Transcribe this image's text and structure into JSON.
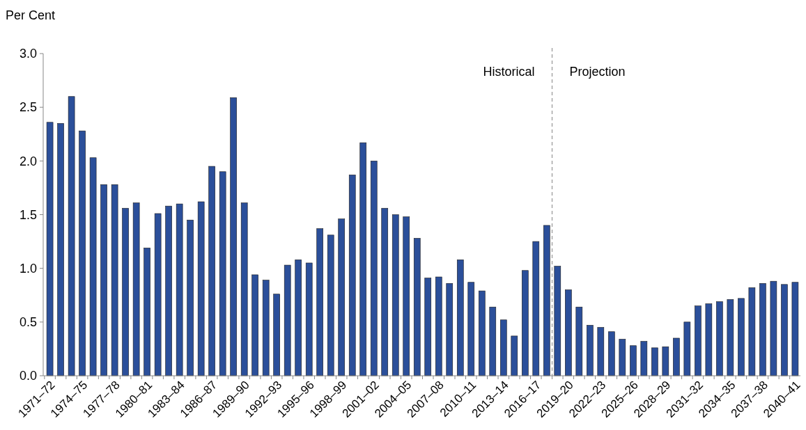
{
  "chart_data": {
    "type": "bar",
    "ylabel": "Per Cent",
    "categories": [
      "1971–72",
      null,
      null,
      "1974–75",
      null,
      null,
      "1977–78",
      null,
      null,
      "1980–81",
      null,
      null,
      "1983–84",
      null,
      null,
      "1986–87",
      null,
      null,
      "1989–90",
      null,
      null,
      "1992–93",
      null,
      null,
      "1995–96",
      null,
      null,
      "1998–99",
      null,
      null,
      "2001–02",
      null,
      null,
      "2004–05",
      null,
      null,
      "2007–08",
      null,
      null,
      "2010–11",
      null,
      null,
      "2013–14",
      null,
      null,
      "2016–17",
      null,
      null,
      "2019–20",
      null,
      null,
      "2022–23",
      null,
      null,
      "2025–26",
      null,
      null,
      "2028–29",
      null,
      null,
      "2031–32",
      null,
      null,
      "2034–35",
      null,
      null,
      "2037–38",
      null,
      null,
      "2040–41"
    ],
    "values": [
      2.36,
      2.35,
      2.6,
      2.28,
      2.03,
      1.78,
      1.78,
      1.56,
      1.61,
      1.19,
      1.51,
      1.58,
      1.6,
      1.45,
      1.62,
      1.95,
      1.9,
      2.59,
      1.61,
      0.94,
      0.89,
      0.76,
      1.03,
      1.08,
      1.05,
      1.37,
      1.31,
      1.46,
      1.87,
      2.17,
      2.0,
      1.56,
      1.5,
      1.48,
      1.28,
      0.91,
      0.92,
      0.86,
      1.08,
      0.87,
      0.79,
      0.64,
      0.52,
      0.37,
      0.98,
      1.25,
      1.4,
      1.02,
      0.8,
      0.64,
      0.47,
      0.45,
      0.41,
      0.34,
      0.28,
      0.32,
      0.26,
      0.27,
      0.35,
      0.5,
      0.65,
      0.67,
      0.69,
      0.71,
      0.72,
      0.82,
      0.86,
      0.88,
      0.85,
      0.87
    ],
    "color": "#2b4f9a",
    "ylim": [
      0,
      3
    ],
    "yticks": [
      {
        "value": 0,
        "label": "0.0"
      },
      {
        "value": 0.5,
        "label": "0.5"
      },
      {
        "value": 1,
        "label": "1.0"
      },
      {
        "value": 1.5,
        "label": "1.5"
      },
      {
        "value": 2,
        "label": "2.0"
      },
      {
        "value": 2.5,
        "label": "2.5"
      },
      {
        "value": 3,
        "label": "3.0"
      }
    ],
    "annotations": [
      "Historical",
      "Projection"
    ]
  }
}
